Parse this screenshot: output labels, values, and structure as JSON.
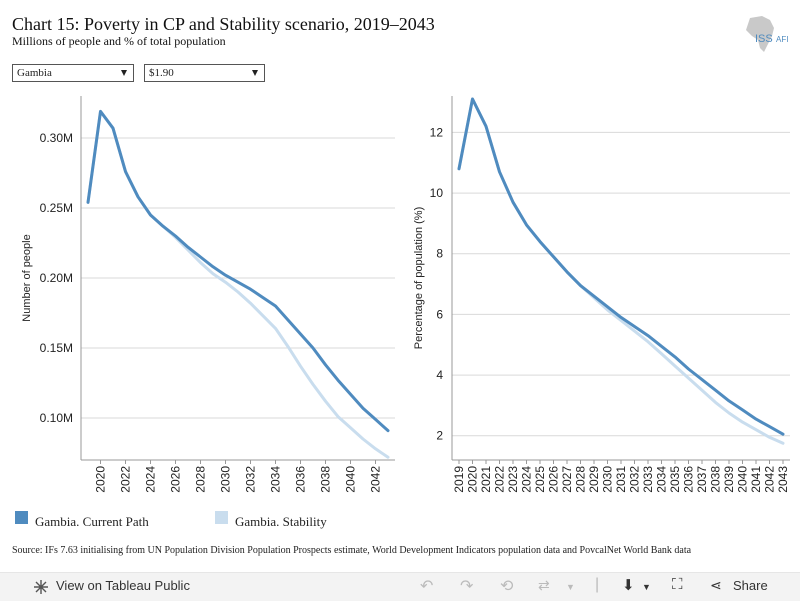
{
  "header": {
    "title": "Chart 15: Poverty in CP and Stability scenario, 2019–2043",
    "subtitle": "Millions of people and % of total population",
    "logo_text": "ISS",
    "logo_text2": "AFI"
  },
  "filters": {
    "country": "Gambia",
    "poverty_line": "$1.90"
  },
  "colors": {
    "current_path": "#4f8bbf",
    "stability": "#c9ddee",
    "grid": "#d9d9d9",
    "axis": "#999999"
  },
  "chart_data": [
    {
      "type": "line",
      "ylabel": "Number of people",
      "xlabel": "",
      "xlim": [
        2019,
        2043
      ],
      "ylim": [
        0.07,
        0.33
      ],
      "y_ticks": [
        0.1,
        0.15,
        0.2,
        0.25,
        0.3
      ],
      "y_tick_labels": [
        "0.10M",
        "0.15M",
        "0.20M",
        "0.25M",
        "0.30M"
      ],
      "x_ticks": [
        2020,
        2022,
        2024,
        2026,
        2028,
        2030,
        2032,
        2034,
        2036,
        2038,
        2040,
        2042
      ],
      "x_tick_labels": [
        "2020",
        "2022",
        "2024",
        "2026",
        "2028",
        "2030",
        "2032",
        "2034",
        "2036",
        "2038",
        "2040",
        "2042"
      ],
      "grid": true,
      "x": [
        2019,
        2020,
        2021,
        2022,
        2023,
        2024,
        2025,
        2026,
        2027,
        2028,
        2029,
        2030,
        2031,
        2032,
        2033,
        2034,
        2035,
        2036,
        2037,
        2038,
        2039,
        2040,
        2041,
        2042,
        2043
      ],
      "series": [
        {
          "name": "Gambia. Stability",
          "color_key": "stability",
          "values": [
            0.254,
            0.319,
            0.307,
            0.276,
            0.258,
            0.245,
            0.237,
            0.229,
            0.22,
            0.211,
            0.203,
            0.197,
            0.19,
            0.182,
            0.173,
            0.164,
            0.151,
            0.137,
            0.124,
            0.112,
            0.101,
            0.093,
            0.085,
            0.078,
            0.072
          ]
        },
        {
          "name": "Gambia. Current Path",
          "color_key": "current_path",
          "values": [
            0.254,
            0.319,
            0.307,
            0.276,
            0.258,
            0.245,
            0.237,
            0.23,
            0.222,
            0.215,
            0.208,
            0.202,
            0.197,
            0.192,
            0.186,
            0.18,
            0.17,
            0.16,
            0.15,
            0.138,
            0.127,
            0.117,
            0.107,
            0.099,
            0.091
          ]
        }
      ]
    },
    {
      "type": "line",
      "ylabel": "Percentage of population (%)",
      "xlabel": "",
      "xlim": [
        2019,
        2043
      ],
      "ylim": [
        1.2,
        13.2
      ],
      "y_ticks": [
        2,
        4,
        6,
        8,
        10,
        12
      ],
      "y_tick_labels": [
        "2",
        "4",
        "6",
        "8",
        "10",
        "12"
      ],
      "x_ticks": [
        2019,
        2020,
        2021,
        2022,
        2023,
        2024,
        2025,
        2026,
        2027,
        2028,
        2029,
        2030,
        2031,
        2032,
        2033,
        2034,
        2035,
        2036,
        2037,
        2038,
        2039,
        2040,
        2041,
        2042,
        2043
      ],
      "x_tick_labels": [
        "2019",
        "2020",
        "2021",
        "2022",
        "2023",
        "2024",
        "2025",
        "2026",
        "2027",
        "2028",
        "2029",
        "2030",
        "2031",
        "2032",
        "2033",
        "2034",
        "2035",
        "2036",
        "2037",
        "2038",
        "2039",
        "2040",
        "2041",
        "2042",
        "2043"
      ],
      "grid": true,
      "x": [
        2019,
        2020,
        2021,
        2022,
        2023,
        2024,
        2025,
        2026,
        2027,
        2028,
        2029,
        2030,
        2031,
        2032,
        2033,
        2034,
        2035,
        2036,
        2037,
        2038,
        2039,
        2040,
        2041,
        2042,
        2043
      ],
      "series": [
        {
          "name": "Gambia. Stability",
          "color_key": "stability",
          "values": [
            10.8,
            13.1,
            12.2,
            10.7,
            9.7,
            8.95,
            8.4,
            7.9,
            7.4,
            6.95,
            6.55,
            6.15,
            5.8,
            5.45,
            5.1,
            4.7,
            4.3,
            3.9,
            3.5,
            3.1,
            2.75,
            2.45,
            2.2,
            1.95,
            1.75
          ]
        },
        {
          "name": "Gambia. Current Path",
          "color_key": "current_path",
          "values": [
            10.8,
            13.1,
            12.2,
            10.7,
            9.7,
            8.95,
            8.4,
            7.9,
            7.4,
            6.95,
            6.6,
            6.25,
            5.9,
            5.6,
            5.3,
            4.95,
            4.6,
            4.2,
            3.85,
            3.5,
            3.15,
            2.85,
            2.55,
            2.3,
            2.05
          ]
        }
      ]
    }
  ],
  "legend": [
    {
      "label": "Gambia. Current Path",
      "color_key": "current_path"
    },
    {
      "label": "Gambia. Stability",
      "color_key": "stability"
    }
  ],
  "source": "Source: IFs 7.63 initialising from UN Population Division Population Prospects estimate, World Development Indicators population data and PovcalNet World Bank data",
  "toolbar": {
    "view_label": "View on Tableau Public",
    "share_label": "Share"
  }
}
